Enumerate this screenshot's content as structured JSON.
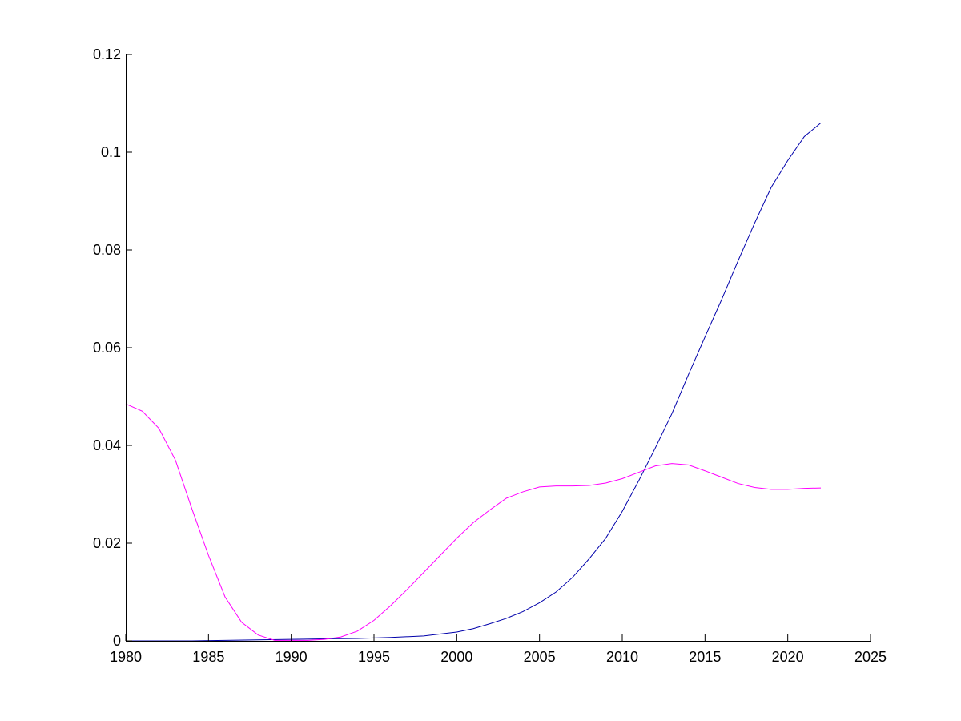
{
  "chart_data": {
    "type": "line",
    "title": "",
    "xlabel": "",
    "ylabel": "",
    "xlim": [
      1980,
      2025
    ],
    "ylim": [
      0,
      0.12
    ],
    "grid": false,
    "legend": "none",
    "x_ticks": [
      1980,
      1985,
      1990,
      1995,
      2000,
      2005,
      2010,
      2015,
      2020,
      2025
    ],
    "x_tick_labels": [
      "1980",
      "1985",
      "1990",
      "1995",
      "2000",
      "2005",
      "2010",
      "2015",
      "2020",
      "2025"
    ],
    "y_ticks": [
      0,
      0.02,
      0.04,
      0.06,
      0.08,
      0.1,
      0.12
    ],
    "y_tick_labels": [
      "0",
      "0.02",
      "0.04",
      "0.06",
      "0.08",
      "0.1",
      "0.12"
    ],
    "series": [
      {
        "color": "#0000aa",
        "x": [
          1980,
          1982,
          1984,
          1986,
          1988,
          1990,
          1992,
          1994,
          1996,
          1998,
          2000,
          2001,
          2002,
          2003,
          2004,
          2005,
          2006,
          2007,
          2008,
          2009,
          2010,
          2011,
          2012,
          2013,
          2014,
          2015,
          2016,
          2017,
          2018,
          2019,
          2020,
          2021,
          2022
        ],
        "values": [
          0.0,
          0.0,
          0.0,
          0.0001,
          0.0002,
          0.0003,
          0.0004,
          0.0005,
          0.0007,
          0.001,
          0.0018,
          0.0025,
          0.0035,
          0.0046,
          0.006,
          0.0078,
          0.01,
          0.013,
          0.0168,
          0.021,
          0.0265,
          0.0328,
          0.0395,
          0.0465,
          0.0545,
          0.0622,
          0.0698,
          0.0778,
          0.0855,
          0.0928,
          0.0983,
          0.1032,
          0.106
        ]
      },
      {
        "color": "#ff00ff",
        "x": [
          1980,
          1981,
          1982,
          1983,
          1984,
          1985,
          1986,
          1987,
          1988,
          1989,
          1990,
          1991,
          1992,
          1993,
          1994,
          1995,
          1996,
          1997,
          1998,
          1999,
          2000,
          2001,
          2002,
          2003,
          2004,
          2005,
          2006,
          2007,
          2008,
          2009,
          2010,
          2011,
          2012,
          2013,
          2014,
          2015,
          2016,
          2017,
          2018,
          2019,
          2020,
          2021,
          2022
        ],
        "values": [
          0.0485,
          0.047,
          0.0435,
          0.037,
          0.027,
          0.0175,
          0.009,
          0.0038,
          0.0012,
          0.0001,
          0.0001,
          0.0001,
          0.0003,
          0.0008,
          0.002,
          0.0042,
          0.0072,
          0.0105,
          0.014,
          0.0175,
          0.021,
          0.0242,
          0.0268,
          0.0292,
          0.0305,
          0.0315,
          0.0317,
          0.0317,
          0.0318,
          0.0323,
          0.0332,
          0.0345,
          0.0358,
          0.0363,
          0.036,
          0.0348,
          0.0335,
          0.0322,
          0.0314,
          0.031,
          0.031,
          0.0312,
          0.0313
        ]
      }
    ]
  }
}
